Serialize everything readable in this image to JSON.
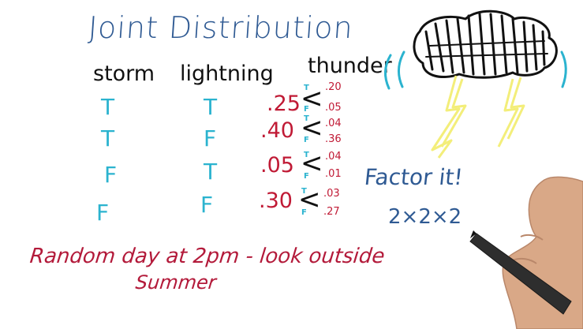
{
  "title": "Joint Distribution",
  "headers": {
    "storm": "storm",
    "lightning": "lightning",
    "thunder": "thunder"
  },
  "rows": [
    {
      "storm": "T",
      "lightning": "T",
      "prob": ".25",
      "t_label": "T",
      "f_label": "F",
      "thunder_t": ".20",
      "thunder_f": ".05"
    },
    {
      "storm": "T",
      "lightning": "F",
      "prob": ".40",
      "t_label": "T",
      "f_label": "F",
      "thunder_t": ".04",
      "thunder_f": ".36"
    },
    {
      "storm": "F",
      "lightning": "T",
      "prob": ".05",
      "t_label": "T",
      "f_label": "F",
      "thunder_t": ".04",
      "thunder_f": ".01"
    },
    {
      "storm": "F",
      "lightning": "F",
      "prob": ".30",
      "t_label": "T",
      "f_label": "F",
      "thunder_t": ".03",
      "thunder_f": ".27"
    }
  ],
  "branch_symbol": "<",
  "note_line1": "Random day at 2pm - look outside",
  "note_line2": "Summer",
  "factor_text": "Factor it!",
  "factor_calc": "2×2×2",
  "colors": {
    "title": "#2f5a93",
    "truth_values": "#2bb3cf",
    "probabilities": "#c01a35",
    "headers": "#111111",
    "cloud": "#111111",
    "lightning_bolt": "#f3ee7a",
    "sound_waves": "#2bb3cf"
  },
  "icons": {
    "storm_drawing": "storm-cloud-icon",
    "bolts": "lightning-bolt-icon",
    "hand": "hand-holding-pen-icon"
  }
}
